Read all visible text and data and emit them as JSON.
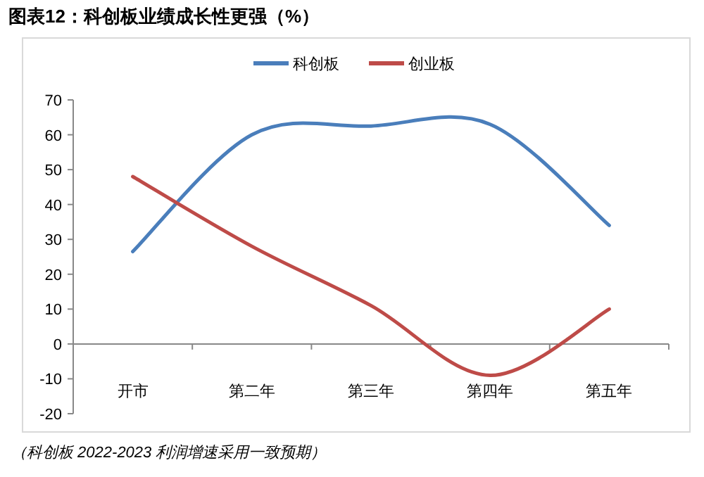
{
  "chart_data": {
    "type": "line",
    "title": "图表12：科创板业绩成长性更强（%）",
    "categories": [
      "开市",
      "第二年",
      "第三年",
      "第四年",
      "第五年"
    ],
    "series": [
      {
        "name": "科创板",
        "color": "#4a7ebb",
        "values": [
          26.5,
          60,
          62.5,
          63,
          34
        ]
      },
      {
        "name": "创业板",
        "color": "#be4b48",
        "values": [
          48,
          28,
          11,
          -9,
          10
        ]
      }
    ],
    "ylim": [
      -20,
      70
    ],
    "yticks": [
      -20,
      -10,
      0,
      10,
      20,
      30,
      40,
      50,
      60,
      70
    ],
    "legend": "top",
    "line_style": "solid",
    "marker": "none",
    "annotations": [
      "（科创板 2022-2023 利润增速采用一致预期）"
    ]
  }
}
